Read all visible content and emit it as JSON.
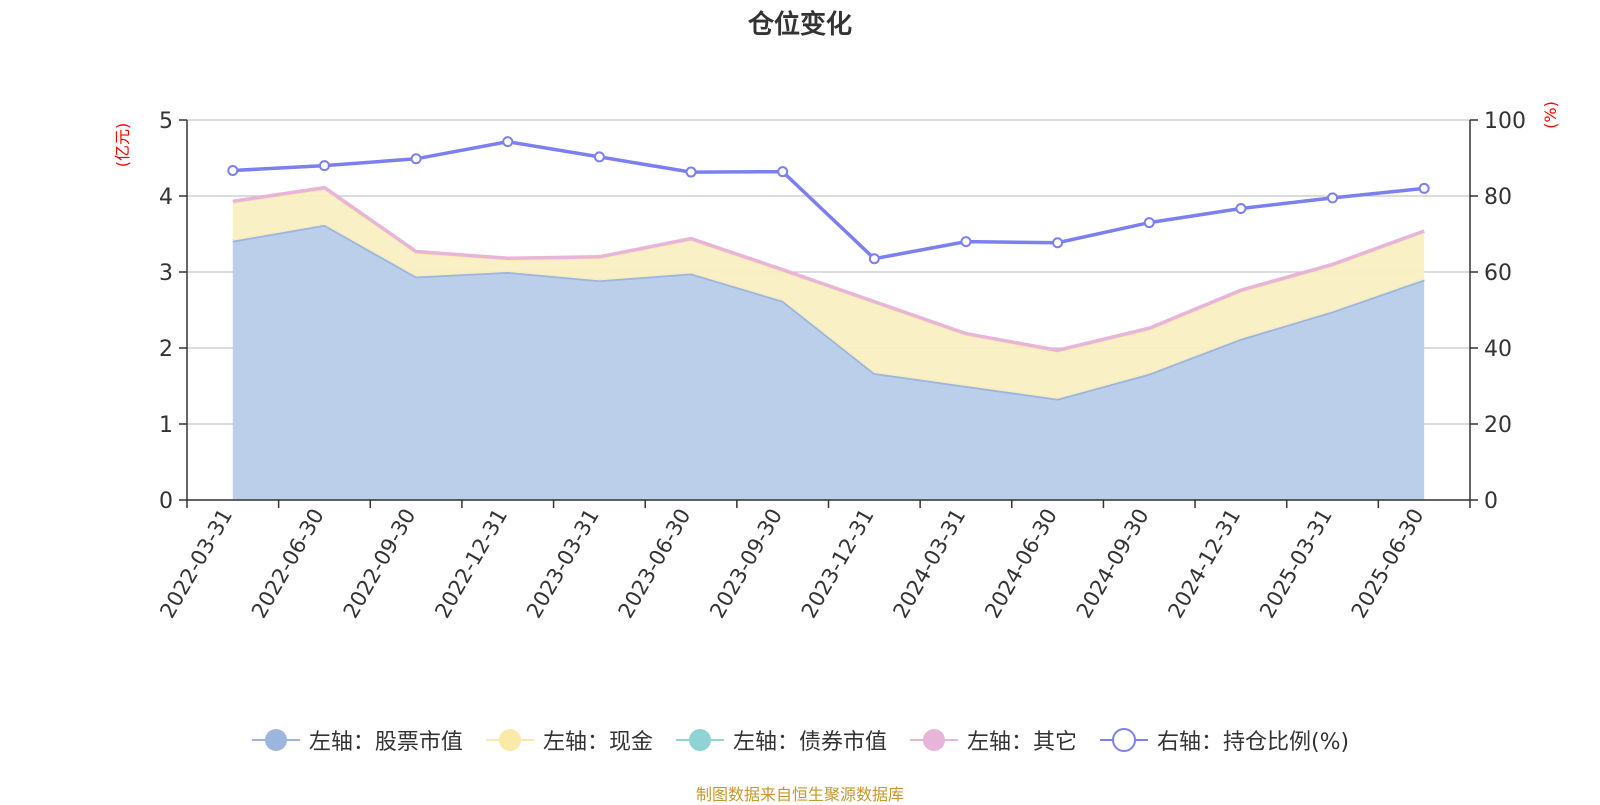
{
  "title": "仓位变化",
  "source_note": "制图数据来自恒生聚源数据库",
  "colors": {
    "stock": "#9bb5dc",
    "stock_fill": "#b8cce9",
    "cash": "#fbe9a8",
    "cash_fill": "#faefc3",
    "bond": "#8fd3d5",
    "other": "#e8b4da",
    "ratio": "#7b7ff0",
    "axis_unit": "#ff0000",
    "grid": "#c8c8c8",
    "axis": "#333333",
    "source": "#c8962f"
  },
  "legend": [
    {
      "label": "左轴：股票市值",
      "color": "#9bb5dc",
      "marker": "filled"
    },
    {
      "label": "左轴：现金",
      "color": "#fbe9a8",
      "marker": "filled"
    },
    {
      "label": "左轴：债券市值",
      "color": "#8fd3d5",
      "marker": "filled"
    },
    {
      "label": "左轴：其它",
      "color": "#e8b4da",
      "marker": "filled"
    },
    {
      "label": "右轴：持仓比例(%)",
      "color": "#7b7ff0",
      "marker": "hollow"
    }
  ],
  "chart_data": {
    "type": "area",
    "title": "仓位变化",
    "x": [
      "2022-03-31",
      "2022-06-30",
      "2022-09-30",
      "2022-12-31",
      "2023-03-31",
      "2023-06-30",
      "2023-09-30",
      "2023-12-31",
      "2024-03-31",
      "2024-06-30",
      "2024-09-30",
      "2024-12-31",
      "2025-03-31",
      "2025-06-30"
    ],
    "y_left_unit": "(亿元)",
    "y_right_unit": "(%)",
    "ylim_left": [
      0,
      5
    ],
    "yticks_left": [
      0,
      1,
      2,
      3,
      4,
      5
    ],
    "ylim_right": [
      0,
      100
    ],
    "yticks_right": [
      0,
      20,
      40,
      60,
      80,
      100
    ],
    "grid": true,
    "legend_position": "bottom",
    "series": [
      {
        "name": "左轴：股票市值",
        "axis": "left",
        "type": "stacked-area",
        "values": [
          3.41,
          3.62,
          2.94,
          3.0,
          2.89,
          2.98,
          2.62,
          1.67,
          1.5,
          1.33,
          1.66,
          2.12,
          2.48,
          2.9
        ]
      },
      {
        "name": "左轴：现金",
        "axis": "left",
        "type": "stacked-area",
        "values": [
          0.51,
          0.48,
          0.32,
          0.17,
          0.3,
          0.45,
          0.4,
          0.93,
          0.68,
          0.63,
          0.59,
          0.63,
          0.61,
          0.63
        ]
      },
      {
        "name": "左轴：债券市值",
        "axis": "left",
        "type": "stacked-area",
        "values": [
          0,
          0,
          0,
          0,
          0,
          0,
          0,
          0,
          0,
          0,
          0,
          0,
          0,
          0
        ]
      },
      {
        "name": "左轴：其它",
        "axis": "left",
        "type": "stacked-area",
        "values": [
          0.01,
          0.01,
          0.01,
          0.01,
          0.01,
          0.01,
          0.01,
          0.01,
          0.01,
          0.01,
          0.01,
          0.01,
          0.01,
          0.01
        ]
      },
      {
        "name": "右轴：持仓比例(%)",
        "axis": "right",
        "type": "line",
        "values": [
          86.7,
          88.0,
          89.8,
          94.3,
          90.3,
          86.3,
          86.4,
          63.5,
          68.0,
          67.7,
          73.0,
          76.7,
          79.5,
          82.0
        ]
      }
    ]
  }
}
